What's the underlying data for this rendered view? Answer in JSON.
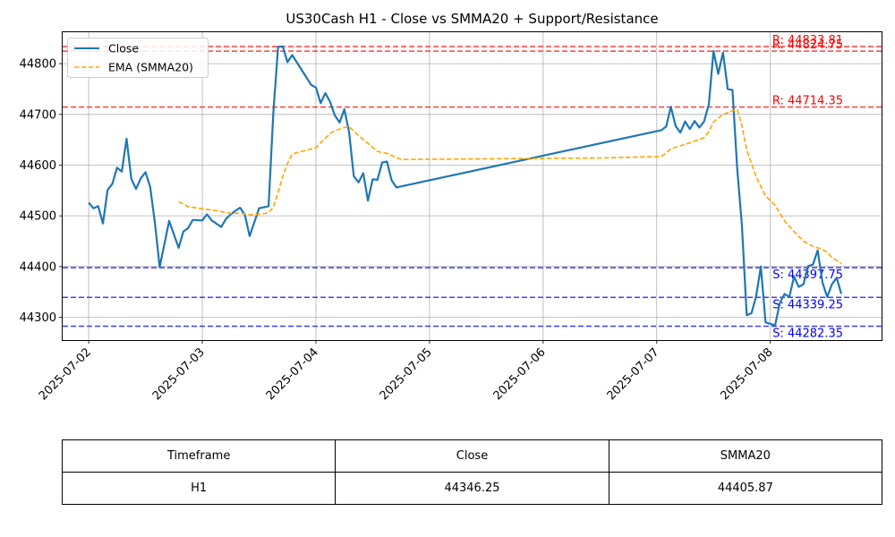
{
  "chart_data": {
    "type": "line",
    "title": "US30Cash H1 - Close vs SMMA20 + Support/Resistance",
    "xlabel": "",
    "ylabel": "",
    "x_ticks": [
      "2025-07-02",
      "2025-07-03",
      "2025-07-04",
      "2025-07-05",
      "2025-07-06",
      "2025-07-07",
      "2025-07-08"
    ],
    "xlim": [
      "2025-07-01T18:30",
      "2025-07-08T23:30"
    ],
    "y_ticks": [
      44300,
      44400,
      44500,
      44600,
      44700,
      44800
    ],
    "ylim": [
      44255,
      44862
    ],
    "grid": true,
    "legend_position": "upper-left",
    "series": [
      {
        "name": "Close",
        "color": "#1f77b4",
        "style": "solid",
        "points": [
          [
            "2025-07-02T00:00",
            44526
          ],
          [
            "2025-07-02T01:00",
            44515
          ],
          [
            "2025-07-02T02:00",
            44519
          ],
          [
            "2025-07-02T03:00",
            44485
          ],
          [
            "2025-07-02T04:00",
            44551
          ],
          [
            "2025-07-02T05:00",
            44563
          ],
          [
            "2025-07-02T06:00",
            44595
          ],
          [
            "2025-07-02T07:00",
            44587
          ],
          [
            "2025-07-02T08:00",
            44652
          ],
          [
            "2025-07-02T09:00",
            44573
          ],
          [
            "2025-07-02T10:00",
            44553
          ],
          [
            "2025-07-02T11:00",
            44574
          ],
          [
            "2025-07-02T12:00",
            44586
          ],
          [
            "2025-07-02T13:00",
            44557
          ],
          [
            "2025-07-02T14:00",
            44486
          ],
          [
            "2025-07-02T15:00",
            44399
          ],
          [
            "2025-07-02T17:00",
            44490
          ],
          [
            "2025-07-02T19:00",
            44437
          ],
          [
            "2025-07-02T20:00",
            44469
          ],
          [
            "2025-07-02T21:00",
            44476
          ],
          [
            "2025-07-02T22:00",
            44492
          ],
          [
            "2025-07-03T00:00",
            44491
          ],
          [
            "2025-07-03T01:00",
            44503
          ],
          [
            "2025-07-03T02:00",
            44491
          ],
          [
            "2025-07-03T04:00",
            44478
          ],
          [
            "2025-07-03T05:00",
            44494
          ],
          [
            "2025-07-03T06:00",
            44503
          ],
          [
            "2025-07-03T07:00",
            44510
          ],
          [
            "2025-07-03T08:00",
            44516
          ],
          [
            "2025-07-03T09:00",
            44502
          ],
          [
            "2025-07-03T10:00",
            44460
          ],
          [
            "2025-07-03T12:00",
            44515
          ],
          [
            "2025-07-03T14:00",
            44519
          ],
          [
            "2025-07-03T15:00",
            44703
          ],
          [
            "2025-07-03T16:00",
            44833
          ],
          [
            "2025-07-03T17:00",
            44834
          ],
          [
            "2025-07-03T18:00",
            44803
          ],
          [
            "2025-07-03T19:00",
            44817
          ],
          [
            "2025-07-03T23:00",
            44758
          ],
          [
            "2025-07-04T00:00",
            44753
          ],
          [
            "2025-07-04T01:00",
            44722
          ],
          [
            "2025-07-04T02:00",
            44742
          ],
          [
            "2025-07-04T03:00",
            44725
          ],
          [
            "2025-07-04T04:00",
            44698
          ],
          [
            "2025-07-04T05:00",
            44684
          ],
          [
            "2025-07-04T06:00",
            44710
          ],
          [
            "2025-07-04T07:00",
            44666
          ],
          [
            "2025-07-04T08:00",
            44578
          ],
          [
            "2025-07-04T09:00",
            44566
          ],
          [
            "2025-07-04T10:00",
            44584
          ],
          [
            "2025-07-04T11:00",
            44530
          ],
          [
            "2025-07-04T12:00",
            44572
          ],
          [
            "2025-07-04T13:00",
            44571
          ],
          [
            "2025-07-04T14:00",
            44605
          ],
          [
            "2025-07-04T15:00",
            44607
          ],
          [
            "2025-07-04T16:00",
            44570
          ],
          [
            "2025-07-04T17:00",
            44556
          ],
          [
            "2025-07-07T01:00",
            44669
          ],
          [
            "2025-07-07T02:00",
            44676
          ],
          [
            "2025-07-07T03:00",
            44715
          ],
          [
            "2025-07-07T04:00",
            44677
          ],
          [
            "2025-07-07T05:00",
            44664
          ],
          [
            "2025-07-07T06:00",
            44686
          ],
          [
            "2025-07-07T07:00",
            44671
          ],
          [
            "2025-07-07T08:00",
            44687
          ],
          [
            "2025-07-07T09:00",
            44674
          ],
          [
            "2025-07-07T10:00",
            44686
          ],
          [
            "2025-07-07T11:00",
            44720
          ],
          [
            "2025-07-07T12:00",
            44825
          ],
          [
            "2025-07-07T13:00",
            44780
          ],
          [
            "2025-07-07T14:00",
            44822
          ],
          [
            "2025-07-07T15:00",
            44750
          ],
          [
            "2025-07-07T16:00",
            44748
          ],
          [
            "2025-07-07T17:00",
            44593
          ],
          [
            "2025-07-07T18:00",
            44480
          ],
          [
            "2025-07-07T19:00",
            44304
          ],
          [
            "2025-07-07T20:00",
            44308
          ],
          [
            "2025-07-07T21:00",
            44341
          ],
          [
            "2025-07-07T22:00",
            44400
          ],
          [
            "2025-07-07T23:00",
            44290
          ],
          [
            "2025-07-08T01:00",
            44284
          ],
          [
            "2025-07-08T02:00",
            44328
          ],
          [
            "2025-07-08T03:00",
            44346
          ],
          [
            "2025-07-08T04:00",
            44340
          ],
          [
            "2025-07-08T05:00",
            44380
          ],
          [
            "2025-07-08T06:00",
            44360
          ],
          [
            "2025-07-08T07:00",
            44365
          ],
          [
            "2025-07-08T08:00",
            44401
          ],
          [
            "2025-07-08T09:00",
            44404
          ],
          [
            "2025-07-08T10:00",
            44432
          ],
          [
            "2025-07-08T11:00",
            44369
          ],
          [
            "2025-07-08T12:00",
            44340
          ],
          [
            "2025-07-08T13:00",
            44365
          ],
          [
            "2025-07-08T14:00",
            44378
          ],
          [
            "2025-07-08T15:00",
            44346.25
          ]
        ]
      },
      {
        "name": "EMA (SMMA20)",
        "color": "#ffa500",
        "style": "dashed",
        "points": [
          [
            "2025-07-02T19:00",
            44528
          ],
          [
            "2025-07-02T21:00",
            44518
          ],
          [
            "2025-07-03T00:00",
            44514
          ],
          [
            "2025-07-03T03:00",
            44510
          ],
          [
            "2025-07-03T06:00",
            44505
          ],
          [
            "2025-07-03T08:00",
            44505
          ],
          [
            "2025-07-03T10:00",
            44502
          ],
          [
            "2025-07-03T12:00",
            44503
          ],
          [
            "2025-07-03T14:00",
            44506
          ],
          [
            "2025-07-03T15:00",
            44517
          ],
          [
            "2025-07-03T16:00",
            44546
          ],
          [
            "2025-07-03T17:00",
            44577
          ],
          [
            "2025-07-03T18:00",
            44603
          ],
          [
            "2025-07-03T19:00",
            44622
          ],
          [
            "2025-07-03T21:00",
            44627
          ],
          [
            "2025-07-04T00:00",
            44634
          ],
          [
            "2025-07-04T01:00",
            44644
          ],
          [
            "2025-07-04T03:00",
            44662
          ],
          [
            "2025-07-04T04:00",
            44668
          ],
          [
            "2025-07-04T06:00",
            44674
          ],
          [
            "2025-07-04T07:00",
            44676
          ],
          [
            "2025-07-04T09:00",
            44658
          ],
          [
            "2025-07-04T11:00",
            44643
          ],
          [
            "2025-07-04T13:00",
            44627
          ],
          [
            "2025-07-04T15:00",
            44623
          ],
          [
            "2025-07-04T18:00",
            44611
          ],
          [
            "2025-07-06T12:00",
            44614
          ],
          [
            "2025-07-07T01:00",
            44617
          ],
          [
            "2025-07-07T03:00",
            44632
          ],
          [
            "2025-07-07T05:00",
            44638
          ],
          [
            "2025-07-07T07:00",
            44644
          ],
          [
            "2025-07-07T10:00",
            44654
          ],
          [
            "2025-07-07T11:00",
            44666
          ],
          [
            "2025-07-07T12:00",
            44685
          ],
          [
            "2025-07-07T14:00",
            44700
          ],
          [
            "2025-07-07T17:00",
            44710
          ],
          [
            "2025-07-07T18:00",
            44677
          ],
          [
            "2025-07-07T19:00",
            44630
          ],
          [
            "2025-07-07T21:00",
            44577
          ],
          [
            "2025-07-07T23:00",
            44539
          ],
          [
            "2025-07-08T01:00",
            44521
          ],
          [
            "2025-07-08T03:00",
            44490
          ],
          [
            "2025-07-08T05:00",
            44469
          ],
          [
            "2025-07-08T07:00",
            44450
          ],
          [
            "2025-07-08T09:00",
            44440
          ],
          [
            "2025-07-08T11:00",
            44434
          ],
          [
            "2025-07-08T12:00",
            44428
          ],
          [
            "2025-07-08T13:00",
            44418
          ],
          [
            "2025-07-08T15:00",
            44405.87
          ]
        ]
      }
    ],
    "levels": [
      {
        "kind": "resistance",
        "value": 44833.81,
        "label": "R: 44833.81",
        "color": "#ff0000"
      },
      {
        "kind": "resistance",
        "value": 44824.75,
        "label": "R: 44824.75",
        "color": "#ff0000"
      },
      {
        "kind": "resistance",
        "value": 44714.35,
        "label": "R: 44714.35",
        "color": "#ff0000"
      },
      {
        "kind": "support",
        "value": 44397.75,
        "label": "S: 44397.75",
        "color": "#0000ff"
      },
      {
        "kind": "support",
        "value": 44339.25,
        "label": "S: 44339.25",
        "color": "#0000ff"
      },
      {
        "kind": "support",
        "value": 44282.35,
        "label": "S: 44282.35",
        "color": "#0000ff"
      }
    ]
  },
  "table": {
    "headers": [
      "Timeframe",
      "Close",
      "SMMA20"
    ],
    "row": [
      "H1",
      "44346.25",
      "44405.87"
    ]
  }
}
